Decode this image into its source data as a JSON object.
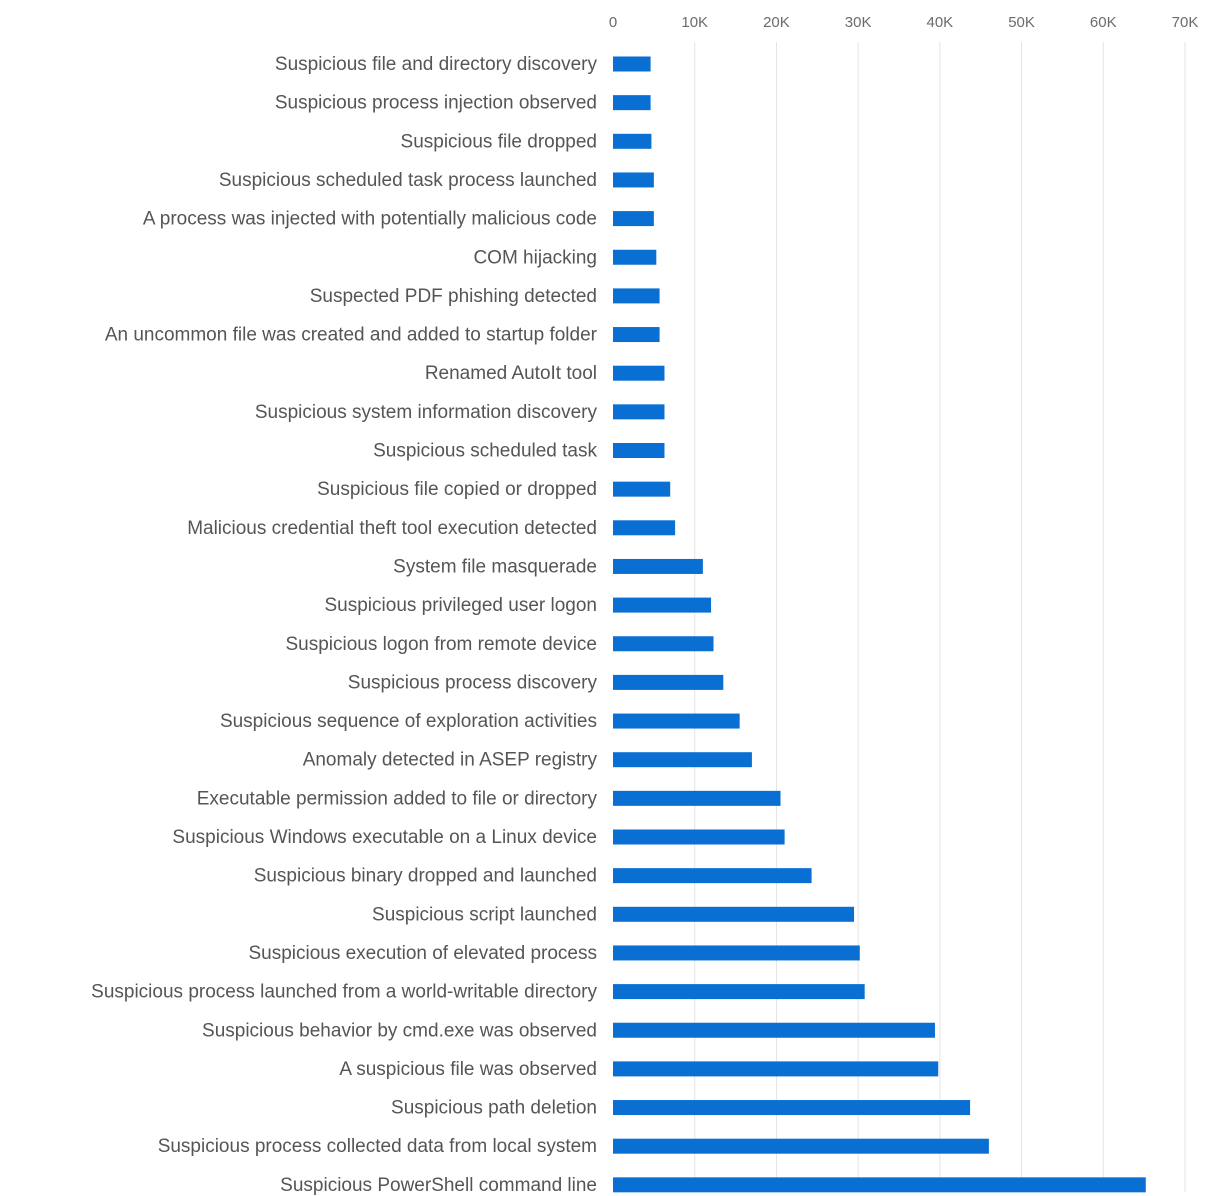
{
  "chart_data": {
    "type": "bar",
    "orientation": "horizontal",
    "title": "",
    "xlabel": "",
    "ylabel": "",
    "xlim": [
      0,
      70000
    ],
    "grid": true,
    "bar_color": "#0a6fd3",
    "x_ticks": [
      0,
      10000,
      20000,
      30000,
      40000,
      50000,
      60000,
      70000
    ],
    "x_tick_labels": [
      "0",
      "10K",
      "20K",
      "30K",
      "40K",
      "50K",
      "60K",
      "70K"
    ],
    "categories": [
      "Suspicious file and directory discovery",
      "Suspicious process injection observed",
      "Suspicious file dropped",
      "Suspicious scheduled task process launched",
      "A process was injected with potentially malicious code",
      "COM hijacking",
      "Suspected PDF phishing detected",
      "An uncommon file was created and added to startup folder",
      "Renamed AutoIt tool",
      "Suspicious system information discovery",
      "Suspicious scheduled task",
      "Suspicious file copied or dropped",
      "Malicious credential theft tool execution detected",
      "System file masquerade",
      "Suspicious privileged user logon",
      "Suspicious logon from remote device",
      "Suspicious process discovery",
      "Suspicious sequence of exploration activities",
      "Anomaly detected in ASEP registry",
      "Executable permission added to file or directory",
      "Suspicious Windows executable on a Linux device",
      "Suspicious binary dropped and launched",
      "Suspicious script launched",
      "Suspicious execution of elevated process",
      "Suspicious process launched from a world-writable directory",
      "Suspicious behavior by cmd.exe was observed",
      "A suspicious file was observed",
      "Suspicious path deletion",
      "Suspicious process collected data from local system",
      "Suspicious PowerShell command line"
    ],
    "values": [
      4600,
      4600,
      4700,
      5000,
      5000,
      5300,
      5700,
      5700,
      6300,
      6300,
      6300,
      7000,
      7600,
      11000,
      12000,
      12300,
      13500,
      15500,
      17000,
      20500,
      21000,
      24300,
      29500,
      30200,
      30800,
      39400,
      39800,
      43700,
      46000,
      65200
    ]
  }
}
